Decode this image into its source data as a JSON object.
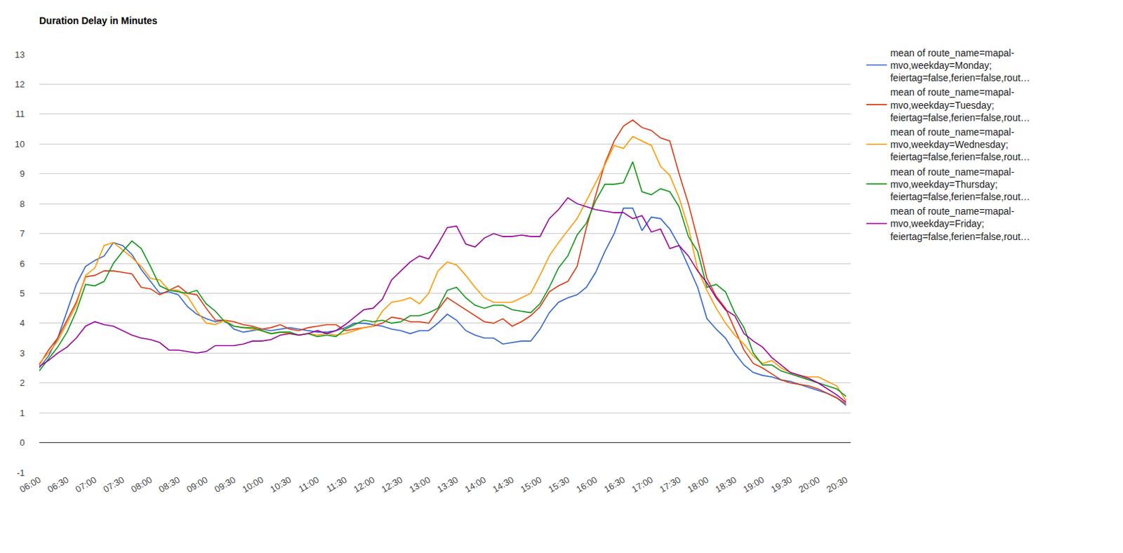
{
  "chart_data": {
    "type": "line",
    "title": "Duration Delay in Minutes",
    "categories": [
      "06:00",
      null,
      null,
      "06:30",
      null,
      null,
      "07:00",
      null,
      null,
      "07:30",
      null,
      null,
      "08:00",
      null,
      null,
      "08:30",
      null,
      null,
      "09:00",
      null,
      null,
      "09:30",
      null,
      null,
      "10:00",
      null,
      null,
      "10:30",
      null,
      null,
      "11:00",
      null,
      null,
      "11:30",
      null,
      null,
      "12:00",
      null,
      null,
      "12:30",
      null,
      null,
      "13:00",
      null,
      null,
      "13:30",
      null,
      null,
      "14:00",
      null,
      null,
      "14:30",
      null,
      null,
      "15:00",
      null,
      null,
      "15:30",
      null,
      null,
      "16:00",
      null,
      null,
      "16:30",
      null,
      null,
      "17:00",
      null,
      null,
      "17:30",
      null,
      null,
      "18:00",
      null,
      null,
      "18:30",
      null,
      null,
      "19:00",
      null,
      null,
      "19:30",
      null,
      null,
      "20:00",
      null,
      null,
      "20:30"
    ],
    "series": [
      {
        "name": "mean of route_name=mapal-mvo,weekday=Monday; feiertag=false,ferien=false,rout…",
        "color": "#3366cc",
        "values": [
          2.5,
          2.9,
          3.5,
          4.4,
          5.3,
          5.9,
          6.1,
          6.25,
          6.7,
          6.6,
          6.3,
          5.8,
          5.4,
          5.0,
          5.05,
          4.95,
          4.55,
          4.3,
          4.15,
          4.05,
          4.1,
          3.8,
          3.7,
          3.75,
          3.8,
          3.75,
          3.8,
          3.85,
          3.8,
          3.75,
          3.7,
          3.7,
          3.75,
          3.85,
          4.0,
          4.0,
          3.95,
          3.9,
          3.8,
          3.75,
          3.65,
          3.75,
          3.75,
          4.0,
          4.3,
          4.1,
          3.75,
          3.6,
          3.5,
          3.5,
          3.3,
          3.35,
          3.4,
          3.4,
          3.8,
          4.35,
          4.7,
          4.85,
          4.95,
          5.2,
          5.7,
          6.4,
          7.0,
          7.85,
          7.85,
          7.1,
          7.55,
          7.5,
          7.15,
          6.6,
          5.9,
          5.2,
          4.15,
          3.8,
          3.5,
          3.0,
          2.6,
          2.35,
          2.25,
          2.2,
          2.1,
          2.05,
          1.95,
          1.85,
          1.75,
          1.65,
          1.5,
          1.25
        ]
      },
      {
        "name": "mean of route_name=mapal-mvo,weekday=Tuesday; feiertag=false,ferien=false,rout…",
        "color": "#dc3912",
        "values": [
          2.6,
          3.1,
          3.5,
          4.1,
          4.7,
          5.55,
          5.6,
          5.75,
          5.75,
          5.7,
          5.65,
          5.2,
          5.15,
          4.95,
          5.1,
          5.25,
          5.0,
          4.95,
          4.5,
          4.1,
          4.1,
          4.05,
          3.95,
          3.9,
          3.8,
          3.85,
          3.95,
          3.8,
          3.75,
          3.85,
          3.9,
          3.95,
          3.95,
          3.75,
          3.8,
          3.85,
          3.9,
          4.0,
          4.2,
          4.15,
          4.05,
          4.05,
          4.0,
          4.45,
          4.85,
          4.65,
          4.45,
          4.25,
          4.05,
          4.0,
          4.15,
          3.9,
          4.05,
          4.25,
          4.55,
          5.05,
          5.25,
          5.4,
          5.9,
          7.2,
          8.3,
          9.35,
          10.1,
          10.6,
          10.8,
          10.55,
          10.45,
          10.2,
          10.1,
          9.0,
          8.0,
          6.8,
          5.5,
          4.9,
          4.5,
          3.8,
          3.1,
          2.65,
          2.5,
          2.3,
          2.1,
          2.0,
          1.95,
          1.9,
          1.8,
          1.65,
          1.5,
          1.3
        ]
      },
      {
        "name": "mean of route_name=mapal-mvo,weekday=Wednesday; feiertag=false,ferien=false,rout…",
        "color": "#ff9900",
        "values": [
          2.65,
          3.0,
          3.4,
          4.0,
          4.6,
          5.6,
          5.85,
          6.6,
          6.7,
          6.45,
          6.2,
          5.9,
          5.5,
          5.45,
          5.1,
          5.1,
          4.9,
          4.4,
          4.0,
          3.95,
          4.1,
          3.9,
          3.85,
          3.8,
          3.75,
          3.65,
          3.7,
          3.65,
          3.6,
          3.65,
          3.6,
          3.65,
          3.6,
          3.65,
          3.75,
          3.85,
          3.9,
          4.4,
          4.7,
          4.75,
          4.85,
          4.65,
          5.0,
          5.75,
          6.05,
          5.95,
          5.6,
          5.2,
          4.85,
          4.7,
          4.7,
          4.7,
          4.85,
          5.0,
          5.6,
          6.25,
          6.7,
          7.1,
          7.5,
          8.1,
          8.7,
          9.3,
          9.95,
          9.85,
          10.25,
          10.1,
          9.95,
          9.25,
          8.95,
          8.2,
          7.2,
          5.8,
          5.1,
          4.5,
          4.0,
          3.6,
          3.3,
          2.9,
          2.65,
          2.75,
          2.5,
          2.35,
          2.25,
          2.2,
          2.2,
          2.05,
          1.9,
          1.4
        ]
      },
      {
        "name": "mean of route_name=mapal-mvo,weekday=Thursday; feiertag=false,ferien=false,rout…",
        "color": "#109618",
        "values": [
          2.4,
          2.8,
          3.2,
          3.7,
          4.4,
          5.3,
          5.25,
          5.4,
          6.0,
          6.4,
          6.75,
          6.5,
          5.9,
          5.25,
          5.1,
          5.05,
          5.0,
          5.1,
          4.65,
          4.4,
          4.05,
          3.9,
          3.85,
          3.85,
          3.75,
          3.65,
          3.7,
          3.7,
          3.6,
          3.65,
          3.55,
          3.6,
          3.55,
          3.8,
          3.95,
          4.1,
          4.05,
          4.1,
          4.0,
          4.05,
          4.25,
          4.25,
          4.35,
          4.5,
          5.1,
          5.2,
          4.85,
          4.6,
          4.5,
          4.6,
          4.6,
          4.45,
          4.4,
          4.35,
          4.65,
          5.2,
          5.85,
          6.25,
          6.95,
          7.35,
          8.1,
          8.65,
          8.65,
          8.7,
          9.4,
          8.4,
          8.3,
          8.5,
          8.4,
          7.9,
          6.9,
          6.4,
          5.2,
          5.3,
          5.05,
          4.35,
          3.85,
          3.0,
          2.6,
          2.6,
          2.4,
          2.3,
          2.2,
          2.1,
          2.0,
          1.9,
          1.8,
          1.55
        ]
      },
      {
        "name": "mean of route_name=mapal-mvo,weekday=Friday; feiertag=false,ferien=false,rout…",
        "color": "#990099",
        "values": [
          2.55,
          2.75,
          3.0,
          3.2,
          3.5,
          3.9,
          4.05,
          3.95,
          3.9,
          3.75,
          3.6,
          3.5,
          3.45,
          3.35,
          3.1,
          3.1,
          3.05,
          3.0,
          3.05,
          3.25,
          3.25,
          3.25,
          3.3,
          3.4,
          3.4,
          3.45,
          3.6,
          3.65,
          3.6,
          3.65,
          3.75,
          3.65,
          3.75,
          3.95,
          4.2,
          4.45,
          4.5,
          4.8,
          5.45,
          5.75,
          6.05,
          6.25,
          6.15,
          6.65,
          7.2,
          7.25,
          6.65,
          6.55,
          6.85,
          7.0,
          6.9,
          6.9,
          6.95,
          6.9,
          6.9,
          7.5,
          7.8,
          8.2,
          8.0,
          7.9,
          7.8,
          7.75,
          7.7,
          7.7,
          7.5,
          7.6,
          7.05,
          7.15,
          6.5,
          6.6,
          6.25,
          5.75,
          5.35,
          4.85,
          4.45,
          4.25,
          3.65,
          3.4,
          3.2,
          2.85,
          2.6,
          2.35,
          2.25,
          2.15,
          2.0,
          1.8,
          1.6,
          1.35
        ]
      }
    ],
    "ylim": [
      -1,
      13
    ],
    "yticks": [
      -1,
      0,
      1,
      2,
      3,
      4,
      5,
      6,
      7,
      8,
      9,
      10,
      11,
      12,
      13
    ],
    "grid": true,
    "legend": "right"
  }
}
